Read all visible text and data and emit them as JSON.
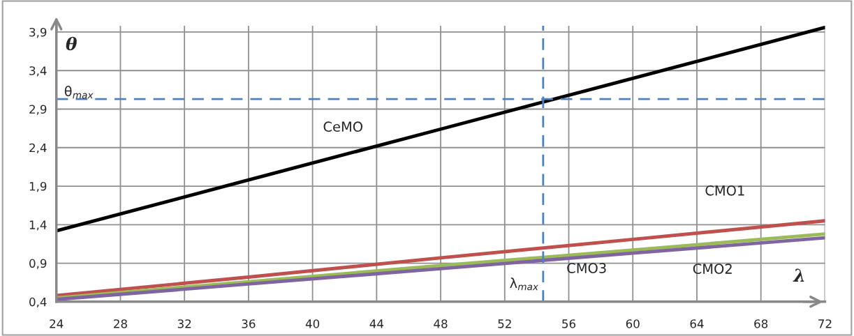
{
  "chart_data": {
    "type": "line",
    "xlabel": "λ",
    "ylabel": "θ",
    "x": [
      24,
      36,
      48,
      60,
      72
    ],
    "series": [
      {
        "name": "CeMO",
        "color": "#000000",
        "values": [
          1.32,
          1.98,
          2.64,
          3.3,
          3.96
        ]
      },
      {
        "name": "CMO1",
        "color": "#c0504d",
        "values": [
          0.48,
          0.72,
          0.97,
          1.21,
          1.45
        ]
      },
      {
        "name": "CMO3",
        "color": "#9bbb59",
        "values": [
          0.45,
          0.66,
          0.87,
          1.07,
          1.28
        ]
      },
      {
        "name": "CMO2",
        "color": "#8064a2",
        "values": [
          0.43,
          0.63,
          0.83,
          1.03,
          1.23
        ]
      }
    ],
    "xlim": [
      24,
      72
    ],
    "xticks": [
      24,
      28,
      32,
      36,
      40,
      44,
      48,
      52,
      56,
      60,
      64,
      68,
      72
    ],
    "ylim": [
      0.4,
      3.98
    ],
    "yticks": [
      {
        "value": 0.4,
        "label": "0,4"
      },
      {
        "value": 0.9,
        "label": "0,9"
      },
      {
        "value": 1.4,
        "label": "1,4"
      },
      {
        "value": 1.9,
        "label": "1,9"
      },
      {
        "value": 2.4,
        "label": "2,4"
      },
      {
        "value": 2.9,
        "label": "2,9"
      },
      {
        "value": 3.4,
        "label": "3,4"
      },
      {
        "value": 3.9,
        "label": "3,9"
      }
    ],
    "ref_lines": [
      {
        "axis": "y",
        "value": 3.03,
        "label": "θ$_{max}$",
        "color": "#4f81bd",
        "line_style": "dashed"
      },
      {
        "axis": "x",
        "value": 54.4,
        "label": "λ$_{max}$",
        "color": "#4f81bd",
        "line_style": "dashed"
      }
    ],
    "grid": true,
    "legend": false,
    "marker": "none",
    "line_style": "solid"
  }
}
